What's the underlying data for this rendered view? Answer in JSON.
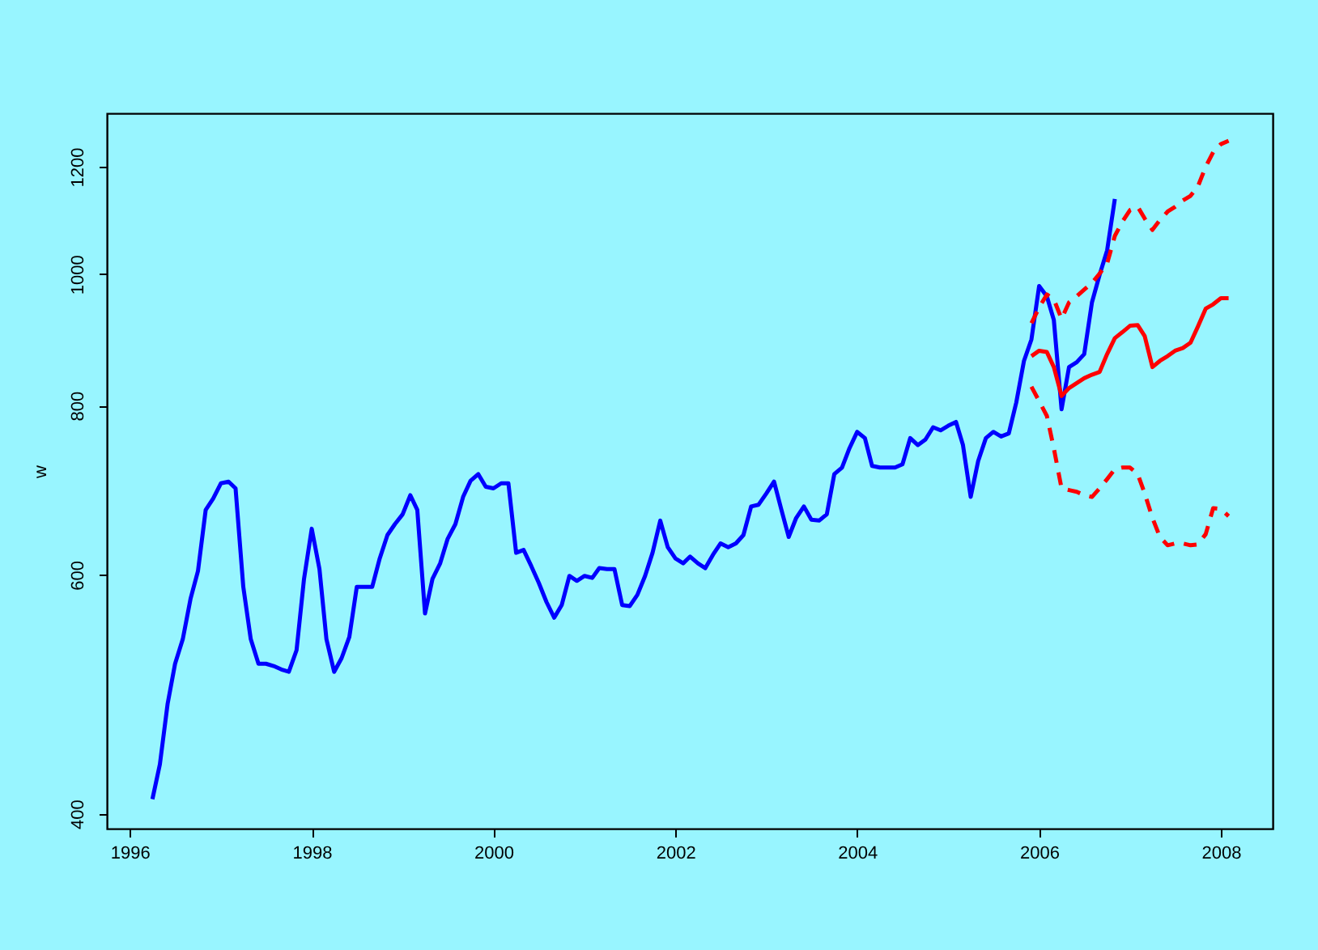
{
  "chart_data": {
    "type": "line",
    "ylabel": "w",
    "log": "y",
    "grid": false,
    "marker": "none",
    "xlim": [
      "1995-10-01",
      "2008-07-27"
    ],
    "xticks": [
      "1996",
      "1998",
      "2000",
      "2002",
      "2004",
      "2006",
      "2008"
    ],
    "ylim": [
      390,
      1314
    ],
    "yticks": [
      400,
      600,
      800,
      1000,
      1200
    ],
    "series": [
      {
        "color": "#0000ff",
        "line_style": "solid",
        "x": [
          "1996-04",
          "1996-05",
          "1996-06",
          "1996-07",
          "1996-08",
          "1996-09",
          "1996-10",
          "1996-11",
          "1996-12",
          "1997-01",
          "1997-02",
          "1997-03",
          "1997-04",
          "1997-05",
          "1997-06",
          "1997-07",
          "1997-08",
          "1997-09",
          "1997-10",
          "1997-11",
          "1997-12",
          "1998-01",
          "1998-02",
          "1998-03",
          "1998-04",
          "1998-05",
          "1998-06",
          "1998-07",
          "1998-08",
          "1998-09",
          "1998-10",
          "1998-11",
          "1998-12",
          "1999-01",
          "1999-02",
          "1999-03",
          "1999-04",
          "1999-05",
          "1999-06",
          "1999-07",
          "1999-08",
          "1999-09",
          "1999-10",
          "1999-11",
          "1999-12",
          "2000-01",
          "2000-02",
          "2000-03",
          "2000-04",
          "2000-05",
          "2000-06",
          "2000-07",
          "2000-08",
          "2000-09",
          "2000-10",
          "2000-11",
          "2000-12",
          "2001-01",
          "2001-02",
          "2001-03",
          "2001-04",
          "2001-05",
          "2001-06",
          "2001-07",
          "2001-08",
          "2001-09",
          "2001-10",
          "2001-11",
          "2001-12",
          "2002-01",
          "2002-02",
          "2002-03",
          "2002-04",
          "2002-05",
          "2002-06",
          "2002-07",
          "2002-08",
          "2002-09",
          "2002-10",
          "2002-11",
          "2002-12",
          "2003-01",
          "2003-02",
          "2003-03",
          "2003-04",
          "2003-05",
          "2003-06",
          "2003-07",
          "2003-08",
          "2003-09",
          "2003-10",
          "2003-11",
          "2003-12",
          "2004-01",
          "2004-02",
          "2004-03",
          "2004-04",
          "2004-05",
          "2004-06",
          "2004-07",
          "2004-08",
          "2004-09",
          "2004-10",
          "2004-11",
          "2004-12",
          "2005-01",
          "2005-02",
          "2005-03",
          "2005-04",
          "2005-05",
          "2005-06",
          "2005-07",
          "2005-08",
          "2005-09",
          "2005-10",
          "2005-11",
          "2005-12",
          "2006-01",
          "2006-02",
          "2006-03",
          "2006-04",
          "2006-05",
          "2006-06",
          "2006-07",
          "2006-08",
          "2006-09",
          "2006-10",
          "2006-11"
        ],
        "values": [
          410,
          435,
          482,
          516,
          538,
          576,
          604,
          670,
          683,
          701,
          703,
          695,
          588,
          538,
          516,
          516,
          514,
          511,
          509,
          528,
          596,
          649,
          606,
          538,
          509,
          521,
          540,
          588,
          588,
          588,
          617,
          642,
          654,
          665,
          687,
          670,
          562,
          596,
          612,
          638,
          654,
          685,
          704,
          712,
          697,
          695,
          701,
          701,
          623,
          626,
          609,
          592,
          573,
          558,
          570,
          599,
          594,
          599,
          597,
          607,
          606,
          606,
          570,
          569,
          580,
          599,
          623,
          658,
          629,
          617,
          612,
          619,
          612,
          607,
          621,
          633,
          629,
          633,
          642,
          674,
          676,
          689,
          703,
          672,
          640,
          661,
          674,
          659,
          658,
          665,
          712,
          720,
          744,
          765,
          757,
          722,
          720,
          720,
          720,
          724,
          757,
          748,
          755,
          771,
          767,
          773,
          778,
          748,
          685,
          728,
          757,
          765,
          759,
          763,
          804,
          863,
          895,
          980,
          963,
          925,
          795,
          854,
          861,
          873,
          953,
          999,
          1041,
          1136
        ]
      },
      {
        "color": "#ff0000",
        "line_style": "solid",
        "x": [
          "2005-12",
          "2006-01",
          "2006-02",
          "2006-03",
          "2006-04",
          "2006-05",
          "2006-06",
          "2006-07",
          "2006-08",
          "2006-09",
          "2006-10",
          "2006-11",
          "2006-12",
          "2007-01",
          "2007-02",
          "2007-03",
          "2007-04",
          "2007-05",
          "2007-06",
          "2007-07",
          "2007-08",
          "2007-09",
          "2007-10",
          "2007-11",
          "2007-12",
          "2008-01",
          "2008-02"
        ],
        "values": [
          870,
          878,
          876,
          854,
          813,
          824,
          831,
          838,
          843,
          847,
          873,
          897,
          906,
          916,
          917,
          900,
          854,
          863,
          870,
          878,
          882,
          890,
          915,
          943,
          950,
          960,
          960
        ]
      },
      {
        "color": "#ff0000",
        "line_style": "dashed",
        "x": [
          "2005-12",
          "2006-01",
          "2006-02",
          "2006-03",
          "2006-04",
          "2006-05",
          "2006-06",
          "2006-07",
          "2006-08",
          "2006-09",
          "2006-10",
          "2006-11",
          "2006-12",
          "2007-01",
          "2007-02",
          "2007-03",
          "2007-04",
          "2007-05",
          "2007-06",
          "2007-07",
          "2007-08",
          "2007-09",
          "2007-10",
          "2007-11",
          "2007-12",
          "2008-01",
          "2008-02"
        ],
        "values": [
          920,
          945,
          966,
          958,
          927,
          953,
          963,
          974,
          985,
          1001,
          1018,
          1067,
          1093,
          1115,
          1121,
          1099,
          1078,
          1096,
          1112,
          1121,
          1133,
          1142,
          1161,
          1200,
          1230,
          1247,
          1254
        ]
      },
      {
        "color": "#ff0000",
        "line_style": "dashed",
        "x": [
          "2005-12",
          "2006-01",
          "2006-02",
          "2006-03",
          "2006-04",
          "2006-05",
          "2006-06",
          "2006-07",
          "2006-08",
          "2006-09",
          "2006-10",
          "2006-11",
          "2006-12",
          "2007-01",
          "2007-02",
          "2007-03",
          "2007-04",
          "2007-05",
          "2007-06",
          "2007-07",
          "2007-08",
          "2007-09",
          "2007-10",
          "2007-11",
          "2007-12",
          "2008-01",
          "2008-02"
        ],
        "values": [
          826,
          806,
          786,
          744,
          695,
          693,
          691,
          687,
          685,
          695,
          706,
          718,
          720,
          720,
          712,
          689,
          661,
          640,
          631,
          633,
          633,
          631,
          632,
          643,
          672,
          671,
          663
        ]
      }
    ]
  }
}
